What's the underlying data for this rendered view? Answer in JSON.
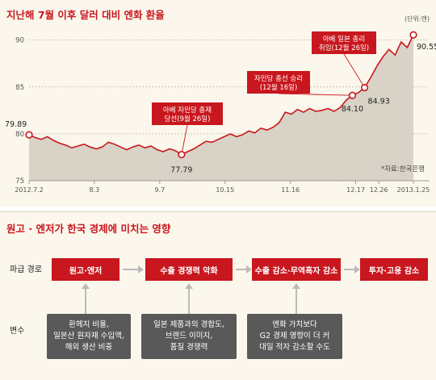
{
  "chart_data": {
    "type": "area",
    "title": "지난해 7월 이후 달러 대비 엔화 환율",
    "unit": "(단위:엔)",
    "source": "*자료:한국은행",
    "ylim": [
      75,
      91
    ],
    "yticks": [
      75,
      80,
      85,
      90
    ],
    "xticks": [
      "2012.7.2",
      "8.3",
      "9.7",
      "10.15",
      "11.16",
      "12.17",
      "12.26",
      "2013.1.25"
    ],
    "grid": true,
    "series": [
      {
        "values": [
          79.89,
          79.6,
          79.4,
          79.7,
          79.3,
          79.0,
          78.8,
          78.5,
          78.7,
          78.9,
          78.6,
          78.4,
          78.6,
          79.1,
          78.9,
          78.6,
          78.3,
          78.6,
          78.8,
          78.5,
          78.7,
          78.3,
          78.1,
          78.4,
          78.2,
          77.79,
          78.1,
          78.4,
          78.8,
          79.2,
          79.1,
          79.4,
          79.7,
          80.0,
          79.7,
          79.9,
          80.3,
          80.1,
          80.6,
          80.4,
          80.7,
          81.2,
          82.3,
          82.1,
          82.6,
          82.3,
          82.7,
          82.4,
          82.5,
          82.7,
          82.4,
          82.8,
          83.6,
          84.1,
          84.4,
          84.93,
          86.0,
          87.2,
          88.2,
          89.0,
          88.4,
          89.8,
          89.2,
          90.55
        ]
      }
    ],
    "highlighted_points": [
      {
        "value": 79.89,
        "label": "79.89"
      },
      {
        "value": 77.79,
        "label": "77.79"
      },
      {
        "value": 84.1,
        "label": "84.10"
      },
      {
        "value": 84.93,
        "label": "84.93"
      },
      {
        "value": 90.55,
        "label": "90.55"
      }
    ],
    "annotations": [
      {
        "line1": "아베 자민당 총재",
        "line2": "당선(9월 26일)"
      },
      {
        "line1": "자민당 총선 승리",
        "line2": "(12월 16일)"
      },
      {
        "line1": "아베 일본 총리",
        "line2": "취임(12월 26일)"
      }
    ]
  },
  "diagram": {
    "title": "원고 · 엔저가 한국 경제에 미치는 영향",
    "row1_label": "파급 경로",
    "row2_label": "변수",
    "flow": [
      "원고·엔저",
      "수출 경쟁력 악화",
      "수출 감소·무역흑자 감소",
      "투자·고용 감소"
    ],
    "variables": [
      [
        "환헤지 비율,",
        "일본산 원자재 수입액,",
        "해외 생산 비중"
      ],
      [
        "일본 제품과의 경합도,",
        "브랜드 이미지,",
        "품질 경쟁력"
      ],
      [
        "엔화 가치보다",
        "G2 경제 영향이 더 커",
        "대일 적자 감소할 수도"
      ]
    ]
  }
}
